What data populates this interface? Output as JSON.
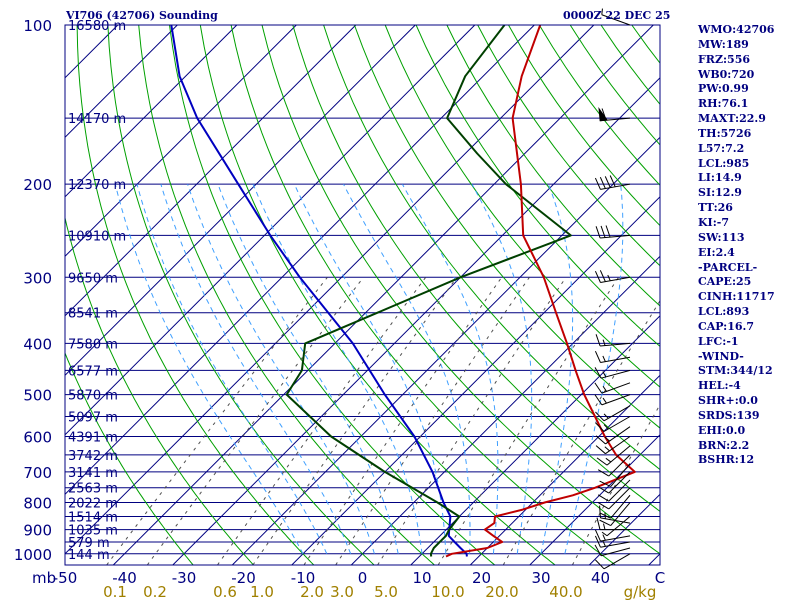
{
  "header": {
    "station": "VI706 (42706) Sounding",
    "time": "0000Z 22 DEC 25"
  },
  "indices": [
    "WMO:42706",
    "MW:189",
    "FRZ:556",
    "WB0:720",
    "PW:0.99",
    "RH:76.1",
    "MAXT:22.9",
    "TH:5726",
    "L57:7.2",
    "LCL:985",
    "LI:14.9",
    "SI:12.9",
    "TT:26",
    "KI:-7",
    "SW:113",
    "EI:2.4",
    "-PARCEL-",
    "CAPE:25",
    "CINH:11717",
    "LCL:893",
    "CAP:16.7",
    "LFC:-1",
    "-WIND-",
    "STM:344/12",
    "HEL:-4",
    "SHR+:0.0",
    "SRDS:139",
    "EHI:0.0",
    "BRN:2.2",
    "BSHR:12"
  ],
  "colors": {
    "axis_text": "#000080",
    "isobar": "#000080",
    "isotherm": "#000080",
    "dry_adiabat": "#00a000",
    "moist_adiabat": "#40a0ff",
    "mixing_ratio": "#505050",
    "temperature": "#c00000",
    "dewpoint": "#004000",
    "parcel": "#0000c0",
    "mixing_ratio_labels": "#a08000",
    "wind_barbs": "#000000"
  },
  "chart_data": {
    "type": "skew-t log-p sounding",
    "pressure_ticks": [
      "100",
      "200",
      "300",
      "400",
      "500",
      "600",
      "700",
      "800",
      "900",
      "1000"
    ],
    "pressure_unit": "mb",
    "temperature_ticks": [
      "-50",
      "-40",
      "-30",
      "-20",
      "-10",
      "0",
      "10",
      "20",
      "30",
      "40",
      "C"
    ],
    "temperature_range": [
      -50,
      50
    ],
    "pressure_range": [
      100,
      1050
    ],
    "mixing_ratio_labels": [
      "0.1",
      "0.2",
      "0.6",
      "1.0",
      "2.0",
      "3.0",
      "5.0",
      "10.0",
      "20.0",
      "40.0",
      "g/kg"
    ],
    "mixing_ratio_values": [
      0.1,
      0.2,
      0.6,
      1.0,
      2.0,
      3.0,
      5.0,
      10.0,
      20.0,
      40.0
    ],
    "isobars": [
      {
        "p": 100,
        "height": "16580 m"
      },
      {
        "p": 150,
        "height": "14170 m"
      },
      {
        "p": 200,
        "height": "12370 m"
      },
      {
        "p": 250,
        "height": "10910 m"
      },
      {
        "p": 300,
        "height": "9650 m"
      },
      {
        "p": 350,
        "height": "8541 m"
      },
      {
        "p": 400,
        "height": "7580 m"
      },
      {
        "p": 450,
        "height": "6577 m"
      },
      {
        "p": 500,
        "height": "5870 m"
      },
      {
        "p": 550,
        "height": "5097 m"
      },
      {
        "p": 600,
        "height": "4391 m"
      },
      {
        "p": 650,
        "height": "3742 m"
      },
      {
        "p": 700,
        "height": "3141 m"
      },
      {
        "p": 750,
        "height": "2563 m"
      },
      {
        "p": 800,
        "height": "2022 m"
      },
      {
        "p": 850,
        "height": "1514 m"
      },
      {
        "p": 900,
        "height": "1035 m"
      },
      {
        "p": 950,
        "height": "579 m"
      },
      {
        "p": 1000,
        "height": "144 m"
      }
    ],
    "temperature_profile": [
      [
        1012,
        14.5
      ],
      [
        1000,
        15.0
      ],
      [
        975,
        20.0
      ],
      [
        950,
        21.5
      ],
      [
        925,
        19.0
      ],
      [
        900,
        16.5
      ],
      [
        875,
        17.0
      ],
      [
        850,
        16.0
      ],
      [
        825,
        19.5
      ],
      [
        800,
        22.0
      ],
      [
        775,
        25.5
      ],
      [
        750,
        28.0
      ],
      [
        700,
        32.0
      ],
      [
        650,
        26.0
      ],
      [
        600,
        21.0
      ],
      [
        550,
        16.0
      ],
      [
        500,
        10.5
      ],
      [
        450,
        5.0
      ],
      [
        400,
        -1.0
      ],
      [
        350,
        -8.0
      ],
      [
        300,
        -16.0
      ],
      [
        250,
        -26.5
      ],
      [
        200,
        -35.5
      ],
      [
        150,
        -48.0
      ],
      [
        125,
        -53.5
      ],
      [
        100,
        -59.0
      ]
    ],
    "dewpoint_profile": [
      [
        1012,
        12.0
      ],
      [
        1000,
        11.5
      ],
      [
        975,
        11.0
      ],
      [
        950,
        11.0
      ],
      [
        925,
        11.0
      ],
      [
        900,
        10.5
      ],
      [
        850,
        10.0
      ],
      [
        800,
        4.0
      ],
      [
        700,
        -10.0
      ],
      [
        600,
        -25.0
      ],
      [
        500,
        -39.5
      ],
      [
        450,
        -41.0
      ],
      [
        400,
        -45.0
      ],
      [
        350,
        -38.0
      ],
      [
        300,
        -30.0
      ],
      [
        250,
        -18.5
      ],
      [
        200,
        -38.0
      ],
      [
        175,
        -48.0
      ],
      [
        150,
        -59.0
      ],
      [
        125,
        -63.0
      ],
      [
        100,
        -65.0
      ]
    ],
    "parcel_profile": [
      [
        1012,
        18.0
      ],
      [
        1000,
        17.5
      ],
      [
        975,
        15.5
      ],
      [
        950,
        13.5
      ],
      [
        925,
        11.5
      ],
      [
        900,
        10.5
      ],
      [
        850,
        8.5
      ],
      [
        800,
        5.0
      ],
      [
        700,
        -2.0
      ],
      [
        600,
        -11.0
      ],
      [
        500,
        -23.0
      ],
      [
        400,
        -37.0
      ],
      [
        300,
        -57.0
      ],
      [
        250,
        -69.0
      ],
      [
        200,
        -83.0
      ],
      [
        150,
        -101.0
      ],
      [
        125,
        -111.0
      ],
      [
        100,
        -121.0
      ]
    ],
    "wind_barbs": [
      {
        "p": 1000,
        "dir": 240,
        "spd": 10
      },
      {
        "p": 975,
        "dir": 255,
        "spd": 10
      },
      {
        "p": 950,
        "dir": 260,
        "spd": 15
      },
      {
        "p": 925,
        "dir": 260,
        "spd": 15
      },
      {
        "p": 900,
        "dir": 270,
        "spd": 15
      },
      {
        "p": 875,
        "dir": 280,
        "spd": 15
      },
      {
        "p": 850,
        "dir": 230,
        "spd": 5
      },
      {
        "p": 800,
        "dir": 220,
        "spd": 10
      },
      {
        "p": 775,
        "dir": 220,
        "spd": 10
      },
      {
        "p": 750,
        "dir": 225,
        "spd": 10
      },
      {
        "p": 725,
        "dir": 225,
        "spd": 10
      },
      {
        "p": 700,
        "dir": 225,
        "spd": 10
      },
      {
        "p": 675,
        "dir": 220,
        "spd": 10
      },
      {
        "p": 650,
        "dir": 225,
        "spd": 10
      },
      {
        "p": 625,
        "dir": 230,
        "spd": 15
      },
      {
        "p": 600,
        "dir": 235,
        "spd": 15
      },
      {
        "p": 575,
        "dir": 235,
        "spd": 15
      },
      {
        "p": 550,
        "dir": 240,
        "spd": 15
      },
      {
        "p": 525,
        "dir": 240,
        "spd": 15
      },
      {
        "p": 500,
        "dir": 250,
        "spd": 15
      },
      {
        "p": 475,
        "dir": 250,
        "spd": 15
      },
      {
        "p": 450,
        "dir": 255,
        "spd": 15
      },
      {
        "p": 425,
        "dir": 260,
        "spd": 15
      },
      {
        "p": 400,
        "dir": 265,
        "spd": 15
      },
      {
        "p": 300,
        "dir": 260,
        "spd": 25
      },
      {
        "p": 250,
        "dir": 265,
        "spd": 30
      },
      {
        "p": 200,
        "dir": 260,
        "spd": 40
      },
      {
        "p": 150,
        "dir": 265,
        "spd": 60
      },
      {
        "p": 100,
        "dir": 290,
        "spd": 5
      }
    ]
  }
}
